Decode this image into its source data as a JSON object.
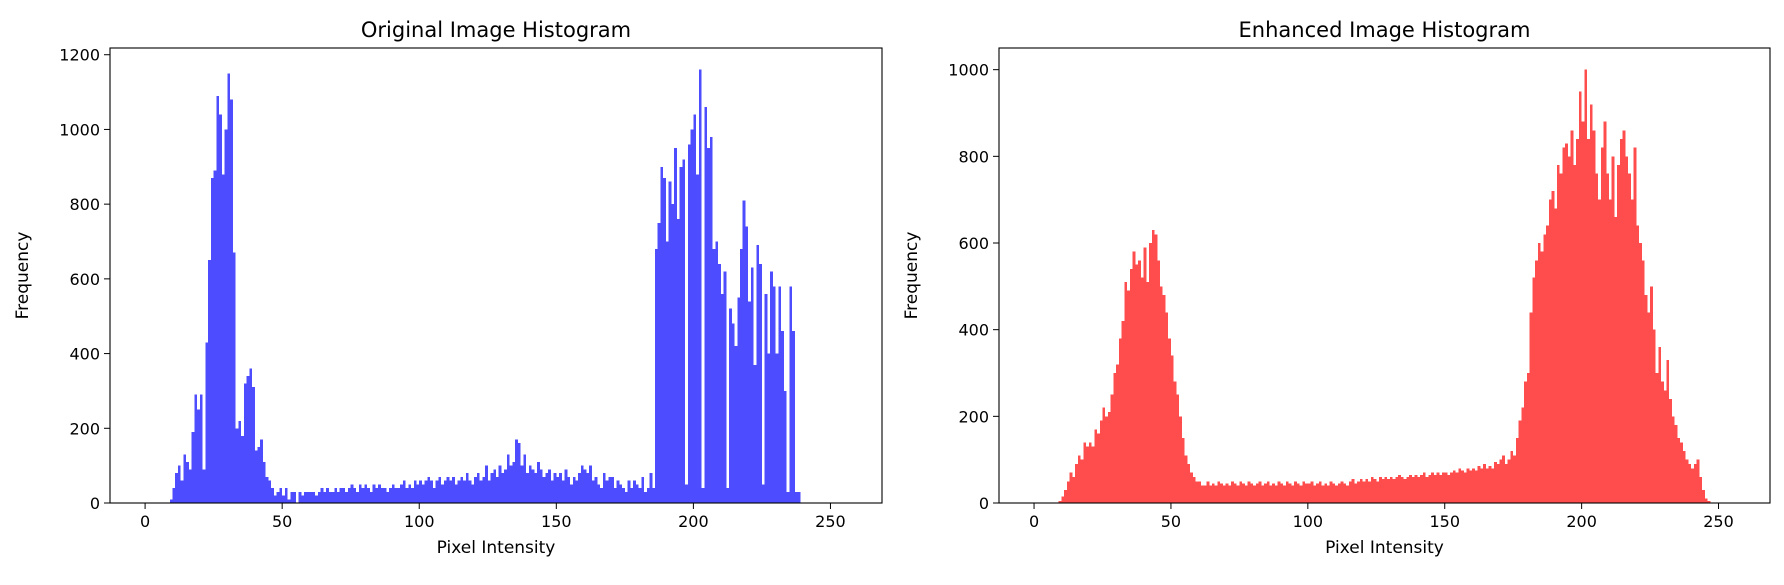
{
  "chart_data": [
    {
      "type": "histogram",
      "title": "Original Image Histogram",
      "xlabel": "Pixel Intensity",
      "ylabel": "Frequency",
      "color": "#4d4dff",
      "bins": [
        0,
        1,
        2,
        3,
        4,
        5,
        6,
        7,
        8,
        9,
        10,
        11,
        12,
        13,
        14,
        15,
        16,
        17,
        18,
        19,
        20,
        21,
        22,
        23,
        24,
        25,
        26,
        27,
        28,
        29,
        30,
        31,
        32,
        33,
        34,
        35,
        36,
        37,
        38,
        39,
        40,
        41,
        42,
        43,
        44,
        45,
        46,
        47,
        48,
        49,
        50,
        51,
        52,
        53,
        54,
        55,
        56,
        57,
        58,
        59,
        60,
        61,
        62,
        63,
        64,
        65,
        66,
        67,
        68,
        69,
        70,
        71,
        72,
        73,
        74,
        75,
        76,
        77,
        78,
        79,
        80,
        81,
        82,
        83,
        84,
        85,
        86,
        87,
        88,
        89,
        90,
        91,
        92,
        93,
        94,
        95,
        96,
        97,
        98,
        99,
        100,
        101,
        102,
        103,
        104,
        105,
        106,
        107,
        108,
        109,
        110,
        111,
        112,
        113,
        114,
        115,
        116,
        117,
        118,
        119,
        120,
        121,
        122,
        123,
        124,
        125,
        126,
        127,
        128,
        129,
        130,
        131,
        132,
        133,
        134,
        135,
        136,
        137,
        138,
        139,
        140,
        141,
        142,
        143,
        144,
        145,
        146,
        147,
        148,
        149,
        150,
        151,
        152,
        153,
        154,
        155,
        156,
        157,
        158,
        159,
        160,
        161,
        162,
        163,
        164,
        165,
        166,
        167,
        168,
        169,
        170,
        171,
        172,
        173,
        174,
        175,
        176,
        177,
        178,
        179,
        180,
        181,
        182,
        183,
        184,
        185,
        186,
        187,
        188,
        189,
        190,
        191,
        192,
        193,
        194,
        195,
        196,
        197,
        198,
        199,
        200,
        201,
        202,
        203,
        204,
        205,
        206,
        207,
        208,
        209,
        210,
        211,
        212,
        213,
        214,
        215,
        216,
        217,
        218,
        219,
        220,
        221,
        222,
        223,
        224,
        225,
        226,
        227,
        228,
        229,
        230,
        231,
        232,
        233,
        234,
        235,
        236,
        237,
        238,
        239,
        240,
        241,
        242,
        243,
        244,
        245,
        246,
        247,
        248,
        249,
        250,
        251,
        252,
        253,
        254,
        255,
        256
      ],
      "values": [
        0,
        0,
        0,
        0,
        0,
        0,
        0,
        0,
        0,
        10,
        40,
        80,
        100,
        60,
        130,
        110,
        90,
        190,
        290,
        250,
        290,
        90,
        430,
        650,
        870,
        890,
        1090,
        1040,
        880,
        1000,
        1150,
        1080,
        670,
        200,
        220,
        180,
        320,
        340,
        360,
        310,
        140,
        150,
        170,
        110,
        70,
        60,
        40,
        20,
        30,
        40,
        20,
        40,
        10,
        30,
        30,
        0,
        30,
        20,
        30,
        30,
        30,
        30,
        20,
        30,
        40,
        30,
        40,
        30,
        30,
        40,
        30,
        40,
        40,
        30,
        40,
        50,
        40,
        30,
        50,
        40,
        50,
        40,
        30,
        50,
        40,
        50,
        40,
        40,
        30,
        40,
        50,
        40,
        40,
        50,
        60,
        40,
        50,
        40,
        60,
        50,
        60,
        50,
        60,
        70,
        60,
        40,
        60,
        70,
        50,
        60,
        70,
        60,
        70,
        50,
        60,
        70,
        60,
        80,
        60,
        50,
        70,
        80,
        60,
        70,
        100,
        60,
        80,
        90,
        70,
        100,
        80,
        90,
        130,
        100,
        110,
        170,
        160,
        100,
        130,
        80,
        100,
        90,
        80,
        110,
        90,
        70,
        80,
        90,
        60,
        80,
        70,
        80,
        60,
        90,
        70,
        50,
        70,
        60,
        80,
        100,
        90,
        80,
        100,
        60,
        70,
        50,
        40,
        80,
        60,
        70,
        70,
        40,
        60,
        50,
        40,
        30,
        60,
        40,
        60,
        50,
        40,
        70,
        30,
        40,
        80,
        40,
        680,
        750,
        900,
        870,
        700,
        860,
        800,
        950,
        760,
        900,
        920,
        50,
        960,
        1000,
        1040,
        880,
        1160,
        40,
        1060,
        950,
        980,
        680,
        700,
        640,
        560,
        620,
        40,
        520,
        480,
        420,
        550,
        680,
        810,
        740,
        540,
        630,
        370,
        690,
        640,
        50,
        560,
        400,
        620,
        580,
        400,
        580,
        460,
        300,
        30,
        580,
        460,
        30,
        30,
        0,
        0,
        0,
        0,
        0,
        0,
        0,
        0,
        0,
        0,
        0,
        0,
        0,
        0,
        0,
        0,
        0
      ],
      "xlim": [
        -12.8,
        268.8
      ],
      "xticks": [
        0,
        50,
        100,
        150,
        200,
        250
      ],
      "ylim": [
        0,
        1218
      ],
      "yticks": [
        0,
        200,
        400,
        600,
        800,
        1000,
        1200
      ]
    },
    {
      "type": "histogram",
      "title": "Enhanced Image Histogram",
      "xlabel": "Pixel Intensity",
      "ylabel": "Frequency",
      "color": "#ff4d4d",
      "bins": [
        0,
        1,
        2,
        3,
        4,
        5,
        6,
        7,
        8,
        9,
        10,
        11,
        12,
        13,
        14,
        15,
        16,
        17,
        18,
        19,
        20,
        21,
        22,
        23,
        24,
        25,
        26,
        27,
        28,
        29,
        30,
        31,
        32,
        33,
        34,
        35,
        36,
        37,
        38,
        39,
        40,
        41,
        42,
        43,
        44,
        45,
        46,
        47,
        48,
        49,
        50,
        51,
        52,
        53,
        54,
        55,
        56,
        57,
        58,
        59,
        60,
        61,
        62,
        63,
        64,
        65,
        66,
        67,
        68,
        69,
        70,
        71,
        72,
        73,
        74,
        75,
        76,
        77,
        78,
        79,
        80,
        81,
        82,
        83,
        84,
        85,
        86,
        87,
        88,
        89,
        90,
        91,
        92,
        93,
        94,
        95,
        96,
        97,
        98,
        99,
        100,
        101,
        102,
        103,
        104,
        105,
        106,
        107,
        108,
        109,
        110,
        111,
        112,
        113,
        114,
        115,
        116,
        117,
        118,
        119,
        120,
        121,
        122,
        123,
        124,
        125,
        126,
        127,
        128,
        129,
        130,
        131,
        132,
        133,
        134,
        135,
        136,
        137,
        138,
        139,
        140,
        141,
        142,
        143,
        144,
        145,
        146,
        147,
        148,
        149,
        150,
        151,
        152,
        153,
        154,
        155,
        156,
        157,
        158,
        159,
        160,
        161,
        162,
        163,
        164,
        165,
        166,
        167,
        168,
        169,
        170,
        171,
        172,
        173,
        174,
        175,
        176,
        177,
        178,
        179,
        180,
        181,
        182,
        183,
        184,
        185,
        186,
        187,
        188,
        189,
        190,
        191,
        192,
        193,
        194,
        195,
        196,
        197,
        198,
        199,
        200,
        201,
        202,
        203,
        204,
        205,
        206,
        207,
        208,
        209,
        210,
        211,
        212,
        213,
        214,
        215,
        216,
        217,
        218,
        219,
        220,
        221,
        222,
        223,
        224,
        225,
        226,
        227,
        228,
        229,
        230,
        231,
        232,
        233,
        234,
        235,
        236,
        237,
        238,
        239,
        240,
        241,
        242,
        243,
        244,
        245,
        246,
        247,
        248,
        249,
        250,
        251,
        252,
        253,
        254,
        255,
        256
      ],
      "values": [
        0,
        0,
        0,
        0,
        0,
        0,
        0,
        0,
        0,
        5,
        15,
        30,
        50,
        70,
        60,
        90,
        110,
        100,
        140,
        130,
        140,
        130,
        170,
        160,
        190,
        220,
        200,
        210,
        250,
        300,
        320,
        380,
        420,
        510,
        490,
        540,
        580,
        550,
        560,
        520,
        590,
        510,
        600,
        630,
        620,
        560,
        500,
        480,
        440,
        380,
        340,
        280,
        250,
        200,
        150,
        110,
        90,
        70,
        60,
        50,
        50,
        40,
        40,
        50,
        40,
        45,
        40,
        50,
        45,
        40,
        45,
        40,
        50,
        45,
        40,
        50,
        45,
        40,
        50,
        45,
        40,
        45,
        50,
        40,
        45,
        50,
        40,
        45,
        40,
        50,
        45,
        40,
        50,
        45,
        40,
        50,
        45,
        40,
        50,
        45,
        45,
        50,
        40,
        45,
        50,
        40,
        45,
        40,
        50,
        45,
        40,
        45,
        50,
        45,
        40,
        50,
        55,
        45,
        50,
        55,
        50,
        55,
        50,
        60,
        55,
        50,
        60,
        55,
        60,
        55,
        60,
        55,
        60,
        65,
        60,
        55,
        60,
        65,
        60,
        65,
        60,
        65,
        70,
        60,
        65,
        70,
        65,
        70,
        65,
        70,
        70,
        65,
        70,
        75,
        70,
        80,
        75,
        70,
        80,
        75,
        80,
        75,
        85,
        80,
        90,
        80,
        85,
        80,
        95,
        90,
        100,
        110,
        90,
        100,
        120,
        110,
        150,
        190,
        220,
        280,
        300,
        440,
        520,
        560,
        600,
        580,
        620,
        640,
        700,
        720,
        680,
        780,
        760,
        820,
        830,
        800,
        860,
        780,
        840,
        950,
        880,
        1000,
        840,
        920,
        860,
        760,
        700,
        820,
        880,
        760,
        700,
        800,
        660,
        780,
        840,
        860,
        800,
        760,
        700,
        820,
        640,
        600,
        560,
        480,
        440,
        500,
        400,
        300,
        360,
        280,
        260,
        330,
        240,
        200,
        180,
        150,
        140,
        120,
        100,
        90,
        80,
        90,
        100,
        60,
        30,
        10,
        5,
        0,
        0,
        0,
        0,
        0,
        0,
        0,
        0,
        0
      ],
      "xlim": [
        -12.8,
        268.8
      ],
      "xticks": [
        0,
        50,
        100,
        150,
        200,
        250
      ],
      "ylim": [
        0,
        1050
      ],
      "yticks": [
        0,
        200,
        400,
        600,
        800,
        1000
      ]
    }
  ]
}
